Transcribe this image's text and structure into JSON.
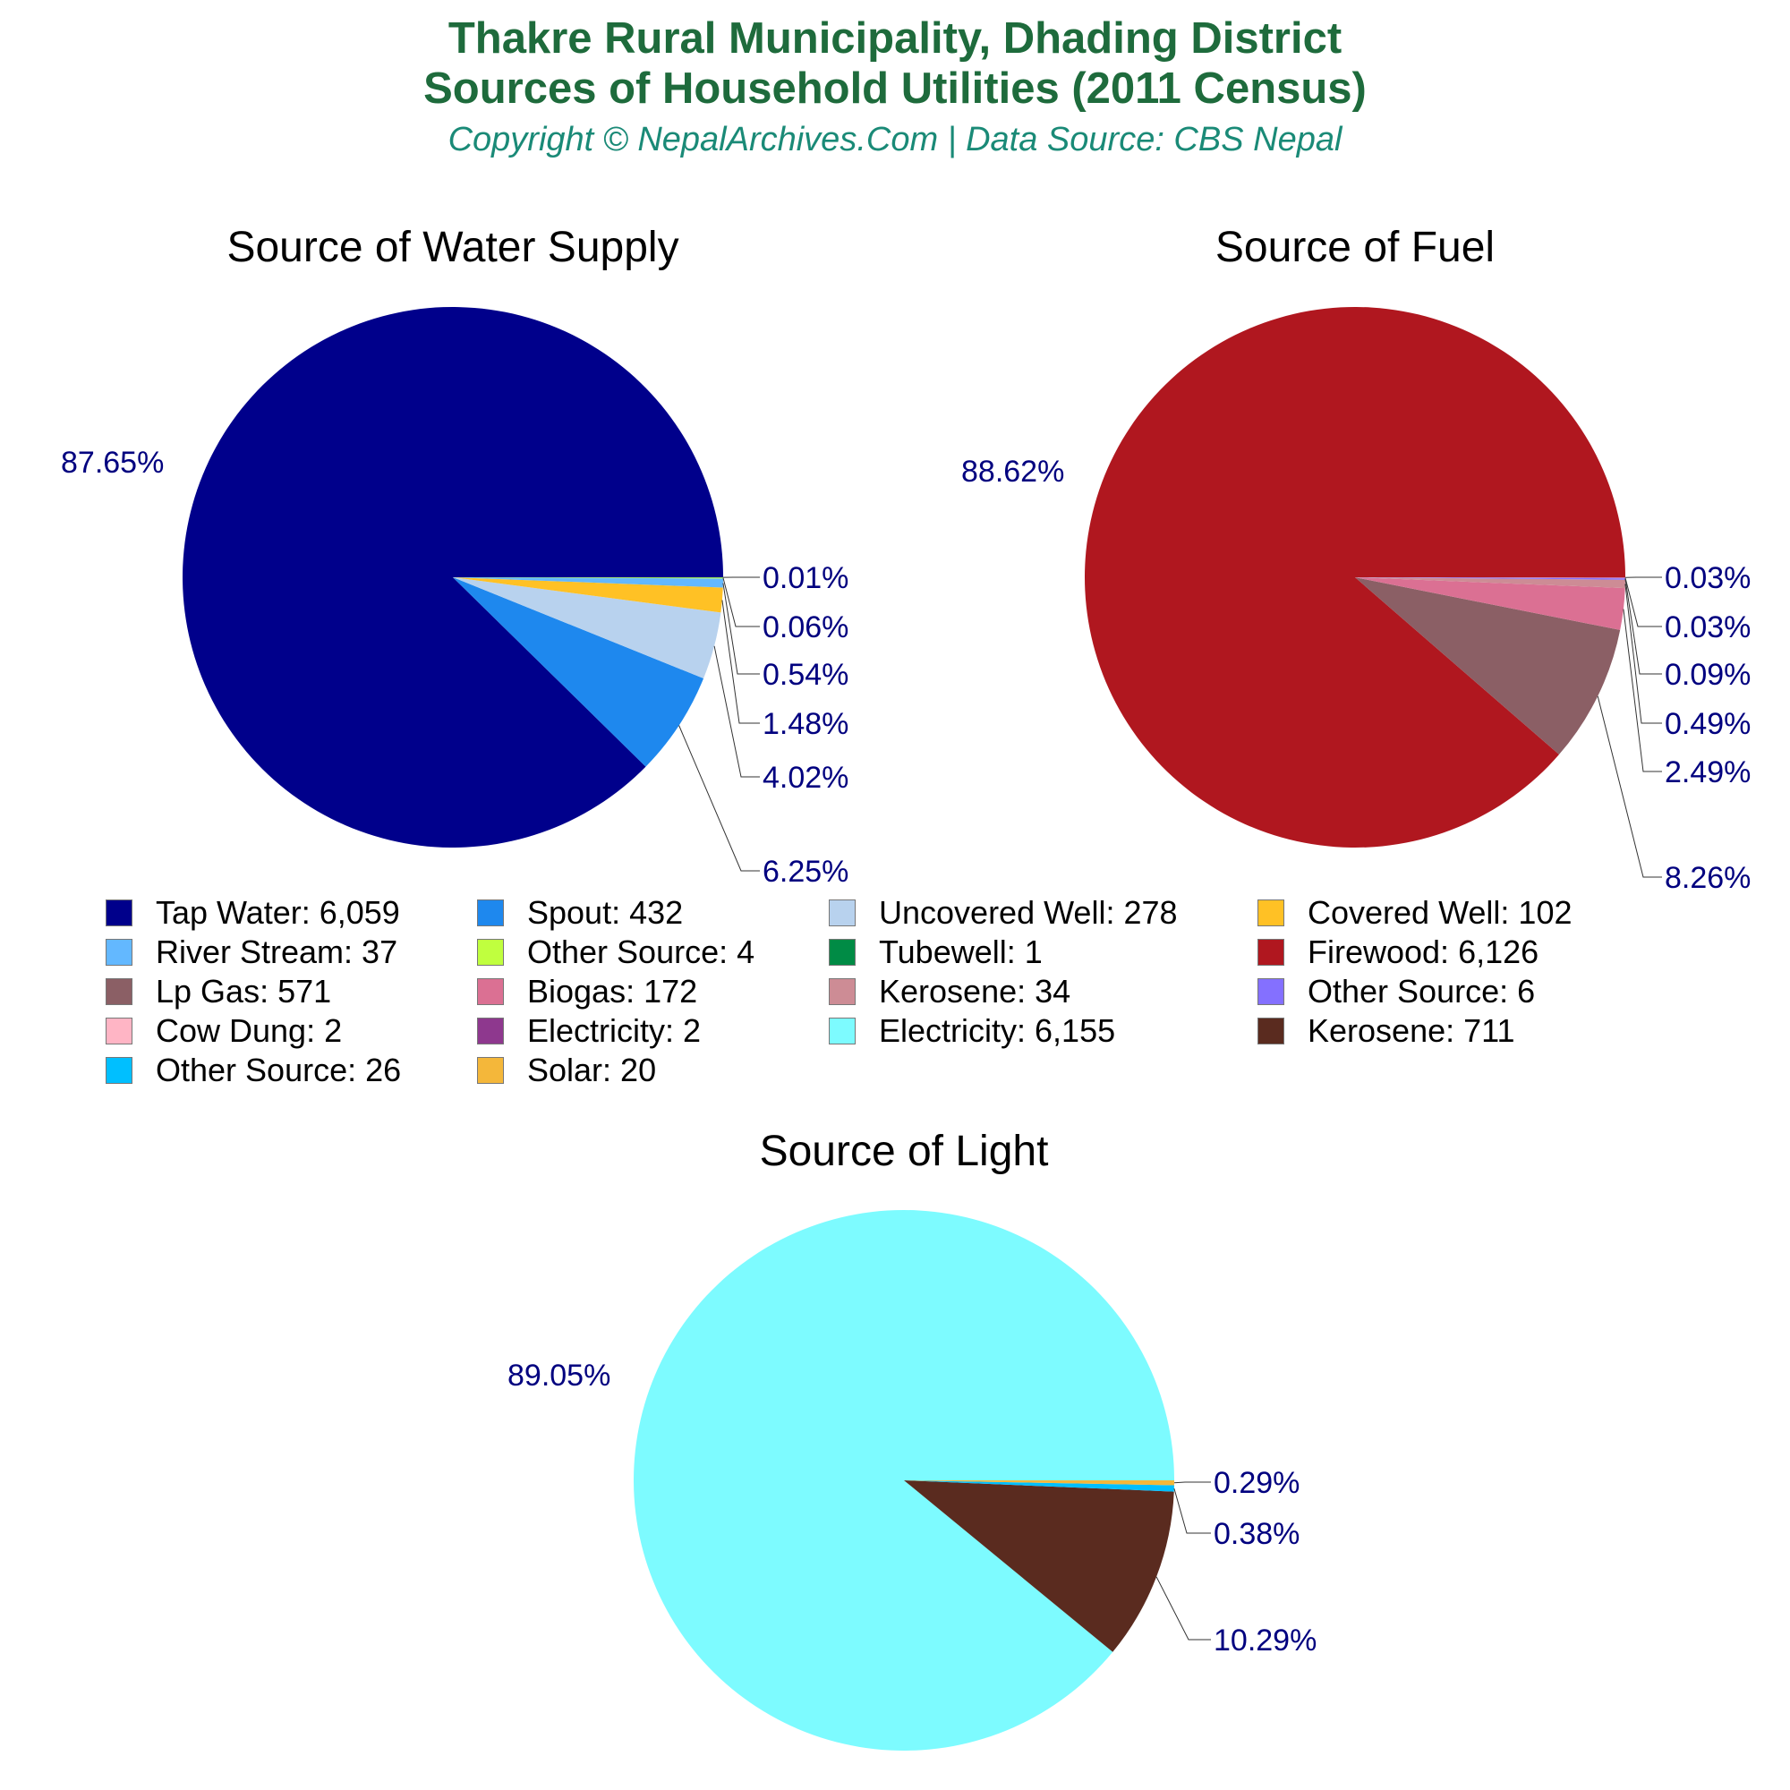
{
  "header": {
    "title_line1": "Thakre Rural Municipality, Dhading District",
    "title_line2": "Sources of Household Utilities (2011 Census)",
    "subtitle": "Copyright © NepalArchives.Com | Data Source: CBS Nepal"
  },
  "chart_data": [
    {
      "type": "pie",
      "title": "Source of Water Supply",
      "slices": [
        {
          "label": "Tap Water",
          "value": 6059,
          "percent_label": "87.65%",
          "color": "#00008b"
        },
        {
          "label": "Spout",
          "value": 432,
          "percent_label": "6.25%",
          "color": "#1e88ee"
        },
        {
          "label": "Uncovered Well",
          "value": 278,
          "percent_label": "4.02%",
          "color": "#b8d2ee"
        },
        {
          "label": "Covered Well",
          "value": 102,
          "percent_label": "1.48%",
          "color": "#ffc125"
        },
        {
          "label": "River Stream",
          "value": 37,
          "percent_label": "0.54%",
          "color": "#63b8ff"
        },
        {
          "label": "Other Source",
          "value": 4,
          "percent_label": "0.06%",
          "color": "#c0ff3e"
        },
        {
          "label": "Tubewell",
          "value": 1,
          "percent_label": "0.01%",
          "color": "#008b45"
        }
      ]
    },
    {
      "type": "pie",
      "title": "Source of Fuel",
      "slices": [
        {
          "label": "Firewood",
          "value": 6126,
          "percent_label": "88.62%",
          "color": "#b0171f"
        },
        {
          "label": "Lp Gas",
          "value": 571,
          "percent_label": "8.26%",
          "color": "#8b5f65"
        },
        {
          "label": "Biogas",
          "value": 172,
          "percent_label": "2.49%",
          "color": "#db7093"
        },
        {
          "label": "Kerosene",
          "value": 34,
          "percent_label": "0.49%",
          "color": "#cd8c95"
        },
        {
          "label": "Other Source",
          "value": 6,
          "percent_label": "0.09%",
          "color": "#8470ff"
        },
        {
          "label": "Cow Dung",
          "value": 2,
          "percent_label": "0.03%",
          "color": "#ffb5c5"
        },
        {
          "label": "Electricity",
          "value": 2,
          "percent_label": "0.03%",
          "color": "#8e388e"
        }
      ]
    },
    {
      "type": "pie",
      "title": "Source of Light",
      "slices": [
        {
          "label": "Electricity",
          "value": 6155,
          "percent_label": "89.05%",
          "color": "#7dfbff"
        },
        {
          "label": "Kerosene",
          "value": 711,
          "percent_label": "10.29%",
          "color": "#5a2b1f"
        },
        {
          "label": "Other Source",
          "value": 26,
          "percent_label": "0.38%",
          "color": "#00bfff"
        },
        {
          "label": "Solar",
          "value": 20,
          "percent_label": "0.29%",
          "color": "#f4b73a"
        }
      ]
    }
  ],
  "legend": [
    {
      "text": "Tap Water: 6,059",
      "color": "#00008b"
    },
    {
      "text": "Spout: 432",
      "color": "#1e88ee"
    },
    {
      "text": "Uncovered Well: 278",
      "color": "#b8d2ee"
    },
    {
      "text": "Covered Well: 102",
      "color": "#ffc125"
    },
    {
      "text": "River Stream: 37",
      "color": "#63b8ff"
    },
    {
      "text": "Other Source: 4",
      "color": "#c0ff3e"
    },
    {
      "text": "Tubewell: 1",
      "color": "#008b45"
    },
    {
      "text": "Firewood: 6,126",
      "color": "#b0171f"
    },
    {
      "text": "Lp Gas: 571",
      "color": "#8b5f65"
    },
    {
      "text": "Biogas: 172",
      "color": "#db7093"
    },
    {
      "text": "Kerosene: 34",
      "color": "#cd8c95"
    },
    {
      "text": "Other Source: 6",
      "color": "#8470ff"
    },
    {
      "text": "Cow Dung: 2",
      "color": "#ffb5c5"
    },
    {
      "text": "Electricity: 2",
      "color": "#8e388e"
    },
    {
      "text": "Electricity: 6,155",
      "color": "#7dfbff"
    },
    {
      "text": "Kerosene: 711",
      "color": "#5a2b1f"
    },
    {
      "text": "Other Source: 26",
      "color": "#00bfff"
    },
    {
      "text": "Solar: 20",
      "color": "#f4b73a"
    }
  ]
}
